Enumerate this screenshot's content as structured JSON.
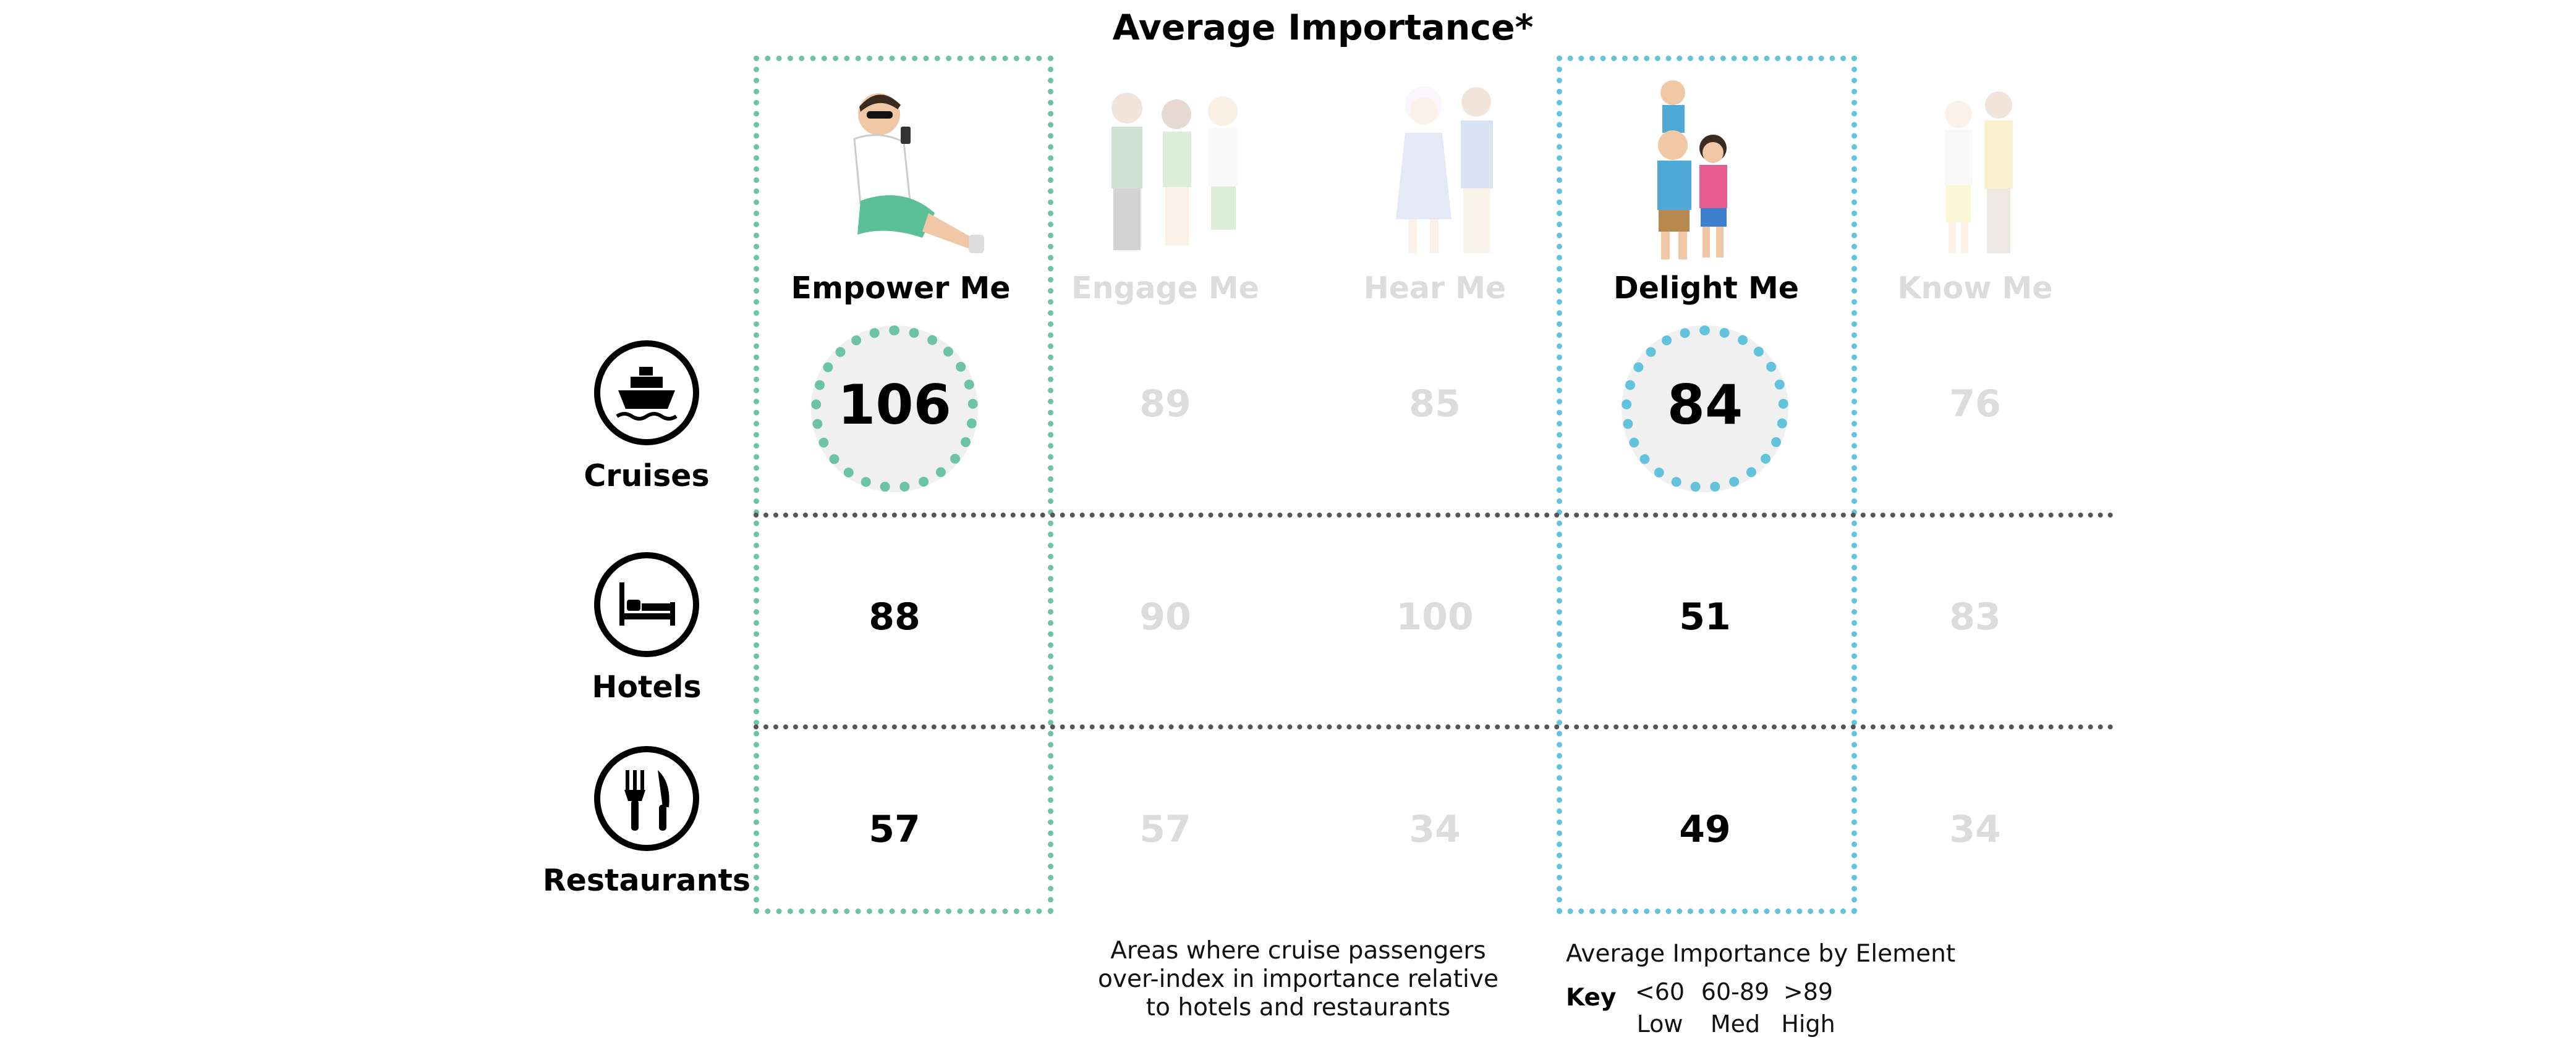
{
  "chart_data": {
    "type": "table",
    "title": "Average Importance*",
    "columns": [
      {
        "label": "Empower Me",
        "highlighted": true,
        "accent": "#6cc4a4"
      },
      {
        "label": "Engage Me",
        "highlighted": false
      },
      {
        "label": "Hear Me",
        "highlighted": false
      },
      {
        "label": "Delight Me",
        "highlighted": true,
        "accent": "#63c3dc"
      },
      {
        "label": "Know Me",
        "highlighted": false
      }
    ],
    "rows": [
      {
        "label": "Cruises",
        "icon": "cruise-ship-icon",
        "values": [
          106,
          89,
          85,
          84,
          76
        ]
      },
      {
        "label": "Hotels",
        "icon": "hotel-bed-icon",
        "values": [
          88,
          90,
          100,
          51,
          83
        ]
      },
      {
        "label": "Restaurants",
        "icon": "fork-knife-icon",
        "values": [
          57,
          57,
          34,
          49,
          34
        ]
      }
    ],
    "note_lines": [
      "Areas where cruise passengers",
      "over-index in importance relative",
      "to hotels and restaurants"
    ],
    "key": {
      "title": "Average Importance by Element",
      "label": "Key",
      "items": [
        {
          "range": "<60",
          "level": "Low"
        },
        {
          "range": "60-89",
          "level": "Med"
        },
        {
          "range": ">89",
          "level": "High"
        }
      ]
    },
    "colors": {
      "empower_accent": "#6cc4a4",
      "delight_accent": "#63c3dc",
      "dimmed_text": "#dcdcdc",
      "ring_fill": "#f0f0f0"
    }
  }
}
